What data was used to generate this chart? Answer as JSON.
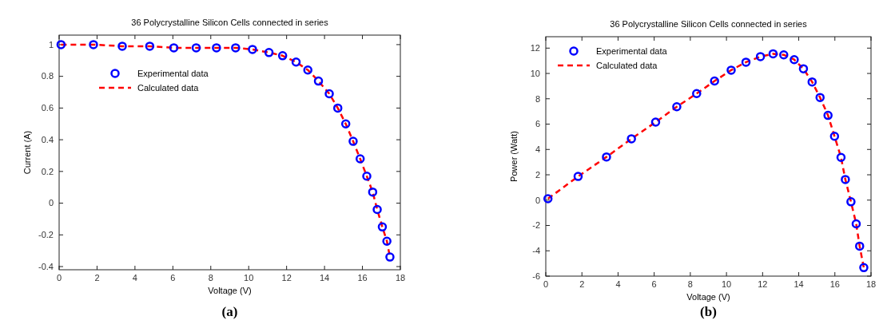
{
  "chart_data": [
    {
      "type": "scatter",
      "title": "36 Polycrystalline Silicon Cells connected in series",
      "xlabel": "Voltage (V)",
      "ylabel": "Current (A)",
      "annotations": [
        "(a)"
      ],
      "xlim": [
        0,
        18
      ],
      "xticks": [
        0,
        2,
        4,
        6,
        8,
        10,
        12,
        14,
        16,
        18
      ],
      "ylim": [
        -0.42,
        1.06
      ],
      "yticks": [
        -0.4,
        -0.2,
        0,
        0.2,
        0.4,
        0.6,
        0.8,
        1
      ],
      "legend": "top left",
      "grid": false,
      "x": [
        0.1,
        1.81,
        3.33,
        4.78,
        6.05,
        7.23,
        8.3,
        9.31,
        10.2,
        11.07,
        11.79,
        12.5,
        13.12,
        13.68,
        14.25,
        14.7,
        15.12,
        15.51,
        15.88,
        16.23,
        16.54,
        16.78,
        17.05,
        17.29,
        17.45
      ],
      "series": [
        {
          "name": "Experimental data",
          "type": "scatter",
          "marker": "circle",
          "color": "#0000ff",
          "values": [
            1.0,
            1.0,
            0.99,
            0.99,
            0.98,
            0.98,
            0.98,
            0.98,
            0.97,
            0.95,
            0.93,
            0.89,
            0.84,
            0.77,
            0.69,
            0.6,
            0.5,
            0.39,
            0.28,
            0.17,
            0.07,
            -0.04,
            -0.15,
            -0.24,
            -0.34
          ]
        },
        {
          "name": "Calculated data",
          "type": "line",
          "line_style": "dashed",
          "color": "#ff0000",
          "values": [
            1.0,
            1.0,
            0.99,
            0.99,
            0.98,
            0.98,
            0.98,
            0.98,
            0.97,
            0.95,
            0.93,
            0.89,
            0.84,
            0.77,
            0.69,
            0.6,
            0.5,
            0.39,
            0.28,
            0.17,
            0.07,
            -0.04,
            -0.15,
            -0.24,
            -0.34
          ]
        }
      ]
    },
    {
      "type": "scatter",
      "title": "36 Polycrystalline Silicon Cells connected in series",
      "xlabel": "Voltage (V)",
      "ylabel": "Power (Watt)",
      "annotations": [
        "(b)"
      ],
      "xlim": [
        0,
        18
      ],
      "xticks": [
        0,
        2,
        4,
        6,
        8,
        10,
        12,
        14,
        16,
        18
      ],
      "ylim": [
        -6,
        12.9
      ],
      "yticks": [
        -6,
        -4,
        -2,
        0,
        2,
        4,
        6,
        8,
        10,
        12
      ],
      "legend": "top left",
      "grid": false,
      "x": [
        0.12,
        1.79,
        3.36,
        4.74,
        6.08,
        7.25,
        8.35,
        9.34,
        10.26,
        11.08,
        11.88,
        12.58,
        13.17,
        13.75,
        14.26,
        14.74,
        15.18,
        15.62,
        15.98,
        16.34,
        16.58,
        16.89,
        17.18,
        17.37,
        17.6
      ],
      "series": [
        {
          "name": "Experimental data",
          "type": "scatter",
          "marker": "circle",
          "color": "#0000ff",
          "values": [
            0.11,
            1.87,
            3.41,
            4.84,
            6.16,
            7.37,
            8.41,
            9.4,
            10.26,
            10.89,
            11.33,
            11.55,
            11.47,
            11.09,
            10.37,
            9.33,
            8.1,
            6.69,
            5.04,
            3.37,
            1.63,
            -0.13,
            -1.87,
            -3.63,
            -5.33
          ]
        },
        {
          "name": "Calculated data",
          "type": "line",
          "line_style": "dashed",
          "color": "#ff0000",
          "values": [
            0.11,
            1.87,
            3.41,
            4.84,
            6.16,
            7.37,
            8.41,
            9.4,
            10.26,
            10.89,
            11.33,
            11.55,
            11.47,
            11.09,
            10.37,
            9.33,
            8.1,
            6.69,
            5.04,
            3.37,
            1.63,
            -0.13,
            -1.87,
            -3.63,
            -5.33
          ]
        }
      ]
    }
  ]
}
